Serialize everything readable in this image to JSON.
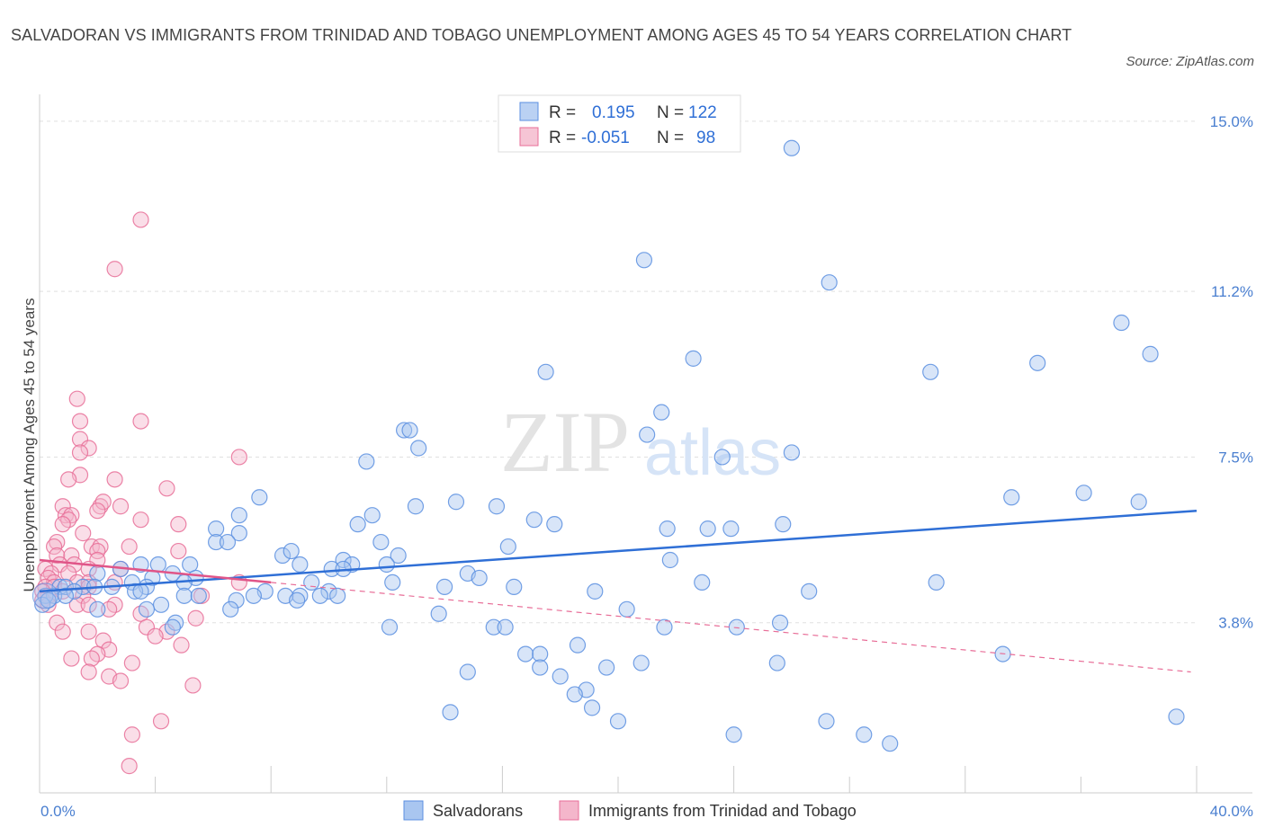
{
  "title": "SALVADORAN VS IMMIGRANTS FROM TRINIDAD AND TOBAGO UNEMPLOYMENT AMONG AGES 45 TO 54 YEARS CORRELATION CHART",
  "source": "Source: ZipAtlas.com",
  "watermark": {
    "zip": "ZIP",
    "atlas": "atlas"
  },
  "colors": {
    "blue": "#5b8fe0",
    "blue_fill": "#a9c6f0",
    "pink": "#e86e98",
    "pink_fill": "#f4b6cb",
    "tick": "#4a7fd0",
    "grid": "#e0e0e0"
  },
  "legend": {
    "rows": [
      {
        "r_label": "R =",
        "r_value": "0.195",
        "n_label": "N =",
        "n_value": "122"
      },
      {
        "r_label": "R =",
        "r_value": "-0.051",
        "n_label": "N =",
        "n_value": "98"
      }
    ]
  },
  "chart_data": {
    "type": "scatter",
    "xlabel": "",
    "ylabel": "Unemployment Among Ages 45 to 54 years",
    "xlim": [
      0,
      40
    ],
    "ylim": [
      0,
      15.6
    ],
    "x_tick_labels": [
      "0.0%",
      "40.0%"
    ],
    "y_ticks": [
      3.8,
      7.5,
      11.2,
      15.0
    ],
    "y_tick_labels": [
      "3.8%",
      "7.5%",
      "11.2%",
      "15.0%"
    ],
    "grid": true,
    "legend_position": "top-center",
    "series": [
      {
        "name": "Salvadorans",
        "color": "#5b8fe0",
        "trend": {
          "x": [
            0,
            40
          ],
          "y": [
            4.5,
            6.3
          ]
        },
        "points": [
          [
            26.0,
            14.4
          ],
          [
            20.9,
            11.9
          ],
          [
            27.3,
            11.4
          ],
          [
            37.4,
            10.5
          ],
          [
            38.4,
            9.8
          ],
          [
            22.6,
            9.7
          ],
          [
            34.5,
            9.6
          ],
          [
            30.8,
            9.4
          ],
          [
            17.5,
            9.4
          ],
          [
            21.5,
            8.5
          ],
          [
            12.6,
            8.1
          ],
          [
            12.8,
            8.1
          ],
          [
            21.0,
            8.0
          ],
          [
            13.1,
            7.7
          ],
          [
            26.0,
            7.6
          ],
          [
            11.3,
            7.4
          ],
          [
            23.6,
            7.5
          ],
          [
            33.6,
            6.6
          ],
          [
            36.1,
            6.7
          ],
          [
            38.0,
            6.5
          ],
          [
            7.6,
            6.6
          ],
          [
            14.4,
            6.5
          ],
          [
            15.8,
            6.4
          ],
          [
            13.0,
            6.4
          ],
          [
            11.5,
            6.2
          ],
          [
            6.9,
            6.2
          ],
          [
            17.1,
            6.1
          ],
          [
            17.8,
            6.0
          ],
          [
            11.0,
            6.0
          ],
          [
            6.1,
            5.9
          ],
          [
            6.9,
            5.8
          ],
          [
            21.7,
            5.9
          ],
          [
            23.1,
            5.9
          ],
          [
            23.9,
            5.9
          ],
          [
            25.7,
            6.0
          ],
          [
            6.1,
            5.6
          ],
          [
            6.5,
            5.6
          ],
          [
            11.8,
            5.6
          ],
          [
            16.2,
            5.5
          ],
          [
            8.4,
            5.3
          ],
          [
            8.7,
            5.4
          ],
          [
            12.4,
            5.3
          ],
          [
            10.5,
            5.2
          ],
          [
            12.0,
            5.1
          ],
          [
            9.0,
            5.1
          ],
          [
            10.8,
            5.1
          ],
          [
            5.2,
            5.1
          ],
          [
            21.8,
            5.2
          ],
          [
            3.5,
            5.1
          ],
          [
            4.1,
            5.1
          ],
          [
            10.1,
            5.0
          ],
          [
            10.5,
            5.0
          ],
          [
            2.8,
            5.0
          ],
          [
            4.6,
            4.9
          ],
          [
            2.0,
            4.9
          ],
          [
            14.8,
            4.9
          ],
          [
            15.2,
            4.8
          ],
          [
            3.9,
            4.8
          ],
          [
            5.4,
            4.8
          ],
          [
            3.2,
            4.7
          ],
          [
            5.0,
            4.7
          ],
          [
            9.4,
            4.7
          ],
          [
            12.2,
            4.7
          ],
          [
            14.0,
            4.6
          ],
          [
            16.4,
            4.6
          ],
          [
            22.9,
            4.7
          ],
          [
            31.0,
            4.7
          ],
          [
            2.5,
            4.6
          ],
          [
            3.7,
            4.6
          ],
          [
            0.7,
            4.6
          ],
          [
            0.9,
            4.6
          ],
          [
            1.5,
            4.6
          ],
          [
            1.9,
            4.6
          ],
          [
            3.3,
            4.5
          ],
          [
            3.5,
            4.5
          ],
          [
            7.8,
            4.5
          ],
          [
            10.0,
            4.5
          ],
          [
            9.7,
            4.4
          ],
          [
            8.5,
            4.4
          ],
          [
            19.2,
            4.5
          ],
          [
            26.6,
            4.5
          ],
          [
            1.2,
            4.5
          ],
          [
            0.5,
            4.4
          ],
          [
            0.2,
            4.4
          ],
          [
            0.9,
            4.4
          ],
          [
            5.0,
            4.4
          ],
          [
            5.5,
            4.4
          ],
          [
            7.4,
            4.4
          ],
          [
            9.0,
            4.4
          ],
          [
            10.3,
            4.4
          ],
          [
            8.9,
            4.3
          ],
          [
            6.8,
            4.3
          ],
          [
            4.2,
            4.2
          ],
          [
            3.7,
            4.1
          ],
          [
            0.1,
            4.2
          ],
          [
            0.3,
            4.3
          ],
          [
            2.0,
            4.1
          ],
          [
            6.6,
            4.1
          ],
          [
            20.3,
            4.1
          ],
          [
            13.8,
            4.0
          ],
          [
            4.7,
            3.8
          ],
          [
            4.6,
            3.7
          ],
          [
            25.6,
            3.8
          ],
          [
            12.1,
            3.7
          ],
          [
            15.7,
            3.7
          ],
          [
            24.1,
            3.7
          ],
          [
            21.6,
            3.7
          ],
          [
            16.1,
            3.7
          ],
          [
            18.6,
            3.3
          ],
          [
            16.8,
            3.1
          ],
          [
            17.3,
            3.1
          ],
          [
            33.3,
            3.1
          ],
          [
            20.8,
            2.9
          ],
          [
            25.5,
            2.9
          ],
          [
            17.3,
            2.8
          ],
          [
            19.6,
            2.8
          ],
          [
            14.8,
            2.7
          ],
          [
            18.0,
            2.6
          ],
          [
            18.9,
            2.3
          ],
          [
            18.5,
            2.2
          ],
          [
            19.1,
            1.9
          ],
          [
            14.2,
            1.8
          ],
          [
            20.0,
            1.6
          ],
          [
            27.2,
            1.6
          ],
          [
            39.3,
            1.7
          ],
          [
            24.0,
            1.3
          ],
          [
            28.5,
            1.3
          ],
          [
            29.4,
            1.1
          ]
        ]
      },
      {
        "name": "Immigrants from Trinidad and Tobago",
        "color": "#e86e98",
        "trend": {
          "x": [
            0,
            8.0
          ],
          "y": [
            5.2,
            4.7
          ]
        },
        "trend_dashed": {
          "x": [
            8.0,
            39.8
          ],
          "y": [
            4.7,
            2.7
          ]
        },
        "points": [
          [
            3.5,
            12.8
          ],
          [
            2.6,
            11.7
          ],
          [
            1.3,
            8.8
          ],
          [
            1.4,
            8.3
          ],
          [
            3.5,
            8.3
          ],
          [
            1.4,
            7.9
          ],
          [
            1.7,
            7.7
          ],
          [
            1.4,
            7.6
          ],
          [
            6.9,
            7.5
          ],
          [
            1.4,
            7.1
          ],
          [
            1.0,
            7.0
          ],
          [
            2.6,
            7.0
          ],
          [
            4.4,
            6.8
          ],
          [
            0.8,
            6.4
          ],
          [
            2.1,
            6.4
          ],
          [
            2.2,
            6.5
          ],
          [
            2.8,
            6.4
          ],
          [
            0.9,
            6.2
          ],
          [
            2.0,
            6.3
          ],
          [
            1.1,
            6.2
          ],
          [
            1.0,
            6.1
          ],
          [
            0.8,
            6.0
          ],
          [
            3.5,
            6.1
          ],
          [
            4.8,
            6.0
          ],
          [
            1.5,
            5.8
          ],
          [
            0.6,
            5.6
          ],
          [
            0.5,
            5.5
          ],
          [
            1.8,
            5.5
          ],
          [
            2.1,
            5.5
          ],
          [
            3.1,
            5.5
          ],
          [
            2.0,
            5.4
          ],
          [
            4.8,
            5.4
          ],
          [
            0.6,
            5.3
          ],
          [
            1.1,
            5.3
          ],
          [
            2.0,
            5.2
          ],
          [
            0.7,
            5.1
          ],
          [
            1.2,
            5.1
          ],
          [
            1.7,
            5.0
          ],
          [
            2.8,
            5.0
          ],
          [
            0.2,
            5.0
          ],
          [
            0.4,
            4.9
          ],
          [
            1.0,
            4.9
          ],
          [
            0.3,
            4.8
          ],
          [
            0.5,
            4.7
          ],
          [
            1.3,
            4.7
          ],
          [
            1.7,
            4.7
          ],
          [
            2.6,
            4.7
          ],
          [
            6.9,
            4.7
          ],
          [
            0.2,
            4.6
          ],
          [
            0.5,
            4.6
          ],
          [
            1.7,
            4.6
          ],
          [
            0.1,
            4.5
          ],
          [
            0.8,
            4.5
          ],
          [
            0.3,
            4.4
          ],
          [
            1.5,
            4.4
          ],
          [
            5.6,
            4.4
          ],
          [
            0.1,
            4.3
          ],
          [
            0.3,
            4.2
          ],
          [
            1.3,
            4.2
          ],
          [
            1.7,
            4.2
          ],
          [
            2.6,
            4.2
          ],
          [
            2.4,
            4.1
          ],
          [
            3.5,
            4.0
          ],
          [
            5.4,
            3.9
          ],
          [
            0.6,
            3.8
          ],
          [
            3.7,
            3.7
          ],
          [
            4.4,
            3.6
          ],
          [
            1.7,
            3.6
          ],
          [
            0.8,
            3.6
          ],
          [
            4.0,
            3.5
          ],
          [
            2.2,
            3.4
          ],
          [
            4.9,
            3.3
          ],
          [
            2.4,
            3.2
          ],
          [
            2.0,
            3.1
          ],
          [
            1.1,
            3.0
          ],
          [
            1.8,
            3.0
          ],
          [
            3.2,
            2.9
          ],
          [
            1.7,
            2.7
          ],
          [
            2.4,
            2.6
          ],
          [
            2.8,
            2.5
          ],
          [
            5.3,
            2.4
          ],
          [
            4.2,
            1.6
          ],
          [
            3.2,
            1.3
          ],
          [
            3.1,
            0.6
          ]
        ]
      }
    ]
  },
  "bottom_legend": [
    {
      "label": "Salvadorans"
    },
    {
      "label": "Immigrants from Trinidad and Tobago"
    }
  ]
}
